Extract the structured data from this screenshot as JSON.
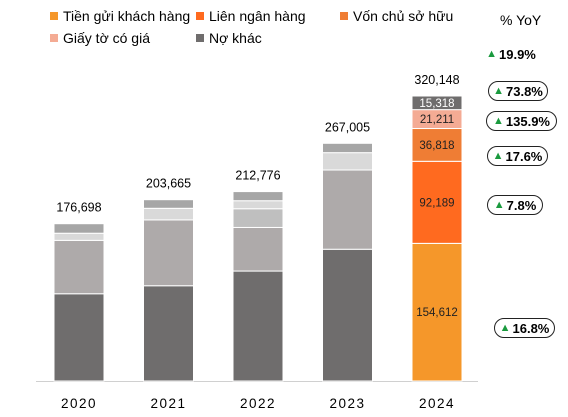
{
  "legend": [
    {
      "label": "Tiền gửi khách hàng",
      "color": "#f5972a"
    },
    {
      "label": "Liên ngân hàng",
      "color": "#ff6a1f"
    },
    {
      "label": "Vốn chủ sở hữu",
      "color": "#ef7d34"
    },
    {
      "label": "Giấy tờ có giá",
      "color": "#f4ab94"
    },
    {
      "label": "Nợ khác",
      "color": "#6f6d6d"
    }
  ],
  "yoy": {
    "header": "% YoY",
    "items": [
      {
        "value": "19.9%",
        "boxed": false
      },
      {
        "value": "73.8%",
        "boxed": true
      },
      {
        "value": "135.9%",
        "boxed": true
      },
      {
        "value": "17.6%",
        "boxed": true
      },
      {
        "value": "7.8%",
        "boxed": true
      },
      {
        "value": "16.8%",
        "boxed": true
      }
    ]
  },
  "chart_data": {
    "type": "bar",
    "stacked": true,
    "categories": [
      "2020",
      "2021",
      "2022",
      "2023",
      "2024"
    ],
    "totals": [
      "176,698",
      "203,665",
      "212,776",
      "267,005",
      "320,148"
    ],
    "total_values": [
      176698,
      203665,
      212776,
      267005,
      320148
    ],
    "series": [
      {
        "name": "Tiền gửi khách hàng",
        "values": [
          98000,
          107000,
          123500,
          148000,
          154612
        ],
        "labels": [
          "",
          "",
          "",
          "",
          "154,612"
        ],
        "colors": [
          "#6f6d6d",
          "#6f6d6d",
          "#6f6d6d",
          "#6f6d6d",
          "#f5972a"
        ]
      },
      {
        "name": "Liên ngân hàng",
        "values": [
          60000,
          74000,
          49000,
          89000,
          92189
        ],
        "labels": [
          "",
          "",
          "",
          "",
          "92,189"
        ],
        "colors": [
          "#aeaaaa",
          "#aeaaaa",
          "#aeaaaa",
          "#aeaaaa",
          "#ff6a1f"
        ]
      },
      {
        "name": "Vốn chủ sở hữu",
        "values": [
          0,
          0,
          21000,
          0,
          36818
        ],
        "labels": [
          "",
          "",
          "",
          "",
          "36,818"
        ],
        "colors": [
          "#bfbfbf",
          "#bfbfbf",
          "#bfbfbf",
          "#bfbfbf",
          "#ef7d34"
        ]
      },
      {
        "name": "Giấy tờ có giá",
        "values": [
          8000,
          13000,
          9000,
          19500,
          21211
        ],
        "labels": [
          "",
          "",
          "",
          "",
          "21,211"
        ],
        "colors": [
          "#d9d9d9",
          "#d9d9d9",
          "#d9d9d9",
          "#d9d9d9",
          "#f4ab94"
        ]
      },
      {
        "name": "Nợ khác",
        "values": [
          10698,
          9665,
          10276,
          10505,
          15318
        ],
        "labels": [
          "",
          "",
          "",
          "",
          "15,318"
        ],
        "colors": [
          "#a6a6a6",
          "#a6a6a6",
          "#a6a6a6",
          "#a6a6a6",
          "#6f6d6d"
        ]
      }
    ],
    "ylim": [
      0,
      320148
    ]
  }
}
